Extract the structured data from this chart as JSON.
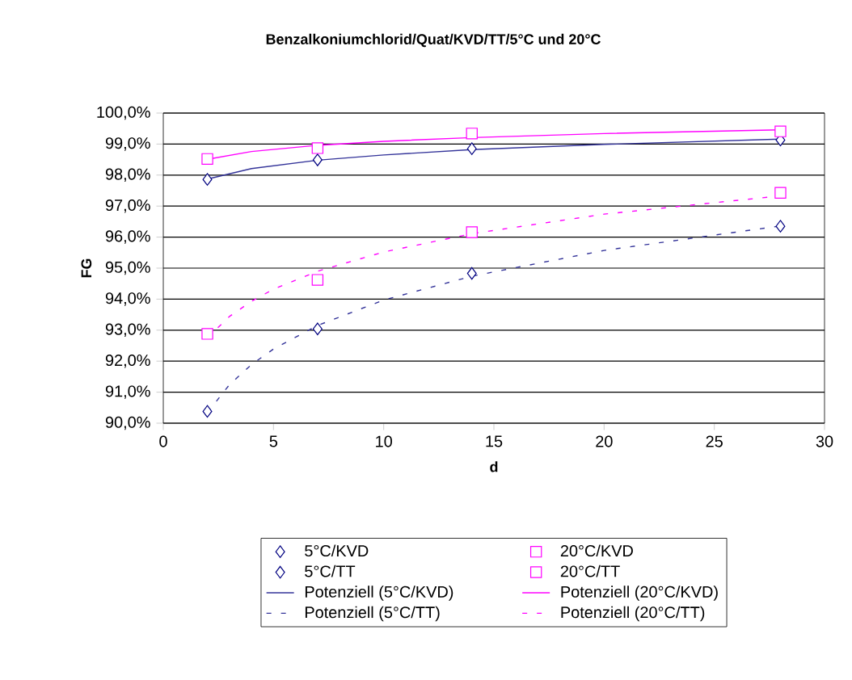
{
  "chart_data": {
    "type": "scatter",
    "title": "Benzalkoniumchlorid/Quat/KVD/TT/5°C und 20°C",
    "xlabel": "d",
    "ylabel": "FG",
    "xlim": [
      0,
      30
    ],
    "xticks": [
      0,
      5,
      10,
      15,
      20,
      25,
      30
    ],
    "ylim": [
      90,
      100
    ],
    "yticks": [
      {
        "value": 90,
        "label": "90,0%"
      },
      {
        "value": 91,
        "label": "91,0%"
      },
      {
        "value": 92,
        "label": "92,0%"
      },
      {
        "value": 93,
        "label": "93,0%"
      },
      {
        "value": 94,
        "label": "94,0%"
      },
      {
        "value": 95,
        "label": "95,0%"
      },
      {
        "value": 96,
        "label": "96,0%"
      },
      {
        "value": 97,
        "label": "97,0%"
      },
      {
        "value": 98,
        "label": "98,0%"
      },
      {
        "value": 99,
        "label": "99,0%"
      },
      {
        "value": 100,
        "label": "100,0%"
      }
    ],
    "grid": "y",
    "legend": "bottom",
    "series": [
      {
        "name": "5°C/KVD",
        "marker": "diamond",
        "color": "#000080",
        "x": [
          2,
          7,
          14,
          28
        ],
        "values": [
          97.86,
          98.49,
          98.85,
          99.13
        ]
      },
      {
        "name": "20°C/KVD",
        "marker": "square",
        "color": "#ff00ff",
        "x": [
          2,
          7,
          14,
          28
        ],
        "values": [
          98.52,
          98.87,
          99.34,
          99.41
        ]
      },
      {
        "name": "5°C/TT",
        "marker": "diamond",
        "color": "#000080",
        "x": [
          2,
          7,
          14,
          28
        ],
        "values": [
          90.38,
          93.04,
          94.83,
          96.35
        ]
      },
      {
        "name": "20°C/TT",
        "marker": "square",
        "color": "#ff00ff",
        "x": [
          2,
          7,
          14,
          28
        ],
        "values": [
          92.88,
          94.62,
          96.16,
          97.43
        ]
      },
      {
        "name": "Potenziell (5°C/KVD)",
        "type": "line",
        "line_style": "solid",
        "color": "#333399",
        "x": [
          2,
          4,
          7,
          10,
          14,
          20,
          28
        ],
        "values": [
          97.87,
          98.21,
          98.48,
          98.65,
          98.82,
          98.99,
          99.16
        ]
      },
      {
        "name": "Potenziell (20°C/KVD)",
        "type": "line",
        "line_style": "solid",
        "color": "#ff00ff",
        "x": [
          2,
          4,
          7,
          10,
          14,
          20,
          28
        ],
        "values": [
          98.51,
          98.76,
          98.96,
          99.09,
          99.21,
          99.34,
          99.46
        ]
      },
      {
        "name": "Potenziell (5°C/TT)",
        "type": "line",
        "line_style": "dashed",
        "color": "#333399",
        "x": [
          2,
          3,
          4,
          5,
          7,
          10,
          14,
          20,
          28
        ],
        "values": [
          90.34,
          91.24,
          91.89,
          92.39,
          93.15,
          93.97,
          94.74,
          95.57,
          96.36
        ]
      },
      {
        "name": "Potenziell (20°C/TT)",
        "type": "line",
        "line_style": "dashed",
        "color": "#ff00ff",
        "x": [
          2,
          3,
          4,
          5,
          7,
          10,
          14,
          20,
          28
        ],
        "values": [
          92.75,
          93.44,
          93.93,
          94.32,
          94.9,
          95.52,
          96.11,
          96.74,
          97.33
        ]
      }
    ]
  }
}
